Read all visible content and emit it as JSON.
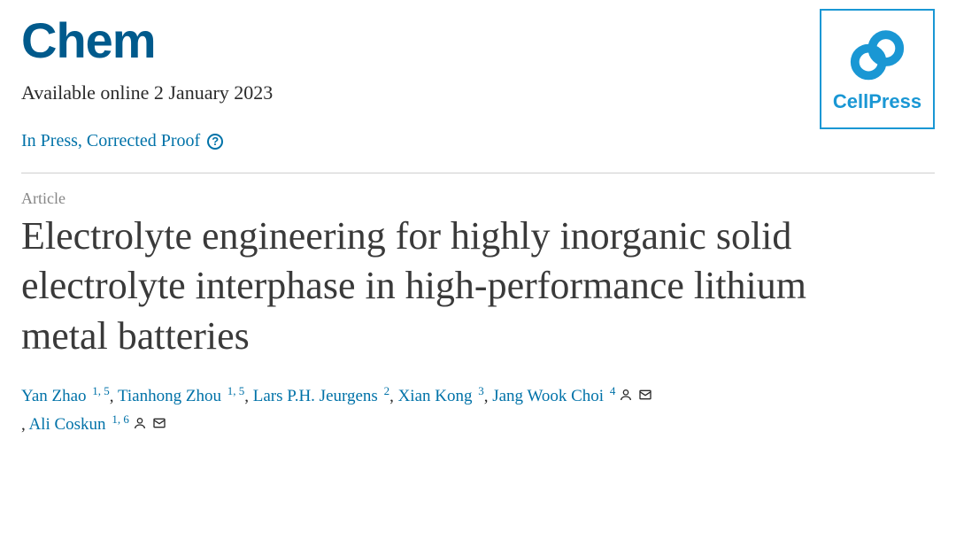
{
  "journal": "Chem",
  "availability": "Available online 2 January 2023",
  "status": "In Press, Corrected Proof",
  "article_type": "Article",
  "title": "Electrolyte engineering for highly inorganic solid electrolyte interphase in high-performance lithium metal batteries",
  "authors": [
    {
      "name": "Yan Zhao",
      "aff": "1, 5",
      "corresponding": false
    },
    {
      "name": "Tianhong Zhou",
      "aff": "1, 5",
      "corresponding": false
    },
    {
      "name": "Lars P.H. Jeurgens",
      "aff": "2",
      "corresponding": false
    },
    {
      "name": "Xian Kong",
      "aff": "3",
      "corresponding": false
    },
    {
      "name": "Jang Wook Choi",
      "aff": "4",
      "corresponding": true
    },
    {
      "name": "Ali Coskun",
      "aff": "1, 6",
      "corresponding": true
    }
  ],
  "publisher_logo_text": "CellPress",
  "colors": {
    "journal_title": "#005a8c",
    "link": "#0072a8",
    "muted": "#868686",
    "text": "#3a3a3a",
    "logo_blue": "#1a97d4",
    "divider": "#cfcfcf"
  }
}
